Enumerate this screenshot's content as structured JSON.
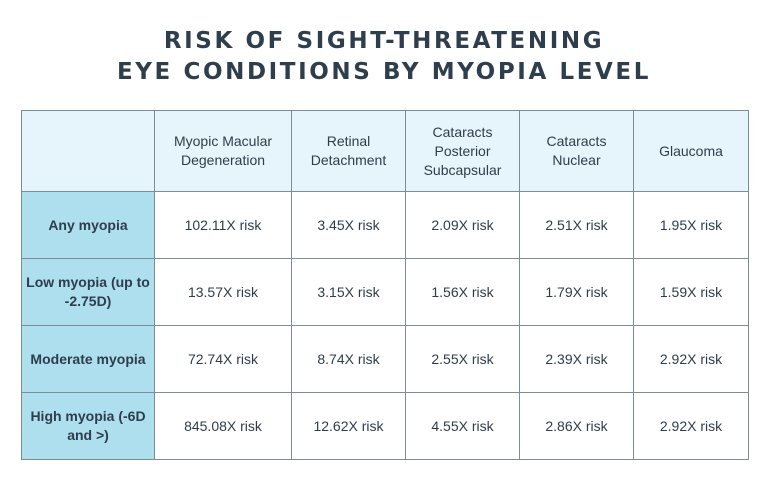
{
  "title": {
    "line1": "RISK OF SIGHT-THREATENING",
    "line2": "EYE CONDITIONS BY MYOPIA LEVEL"
  },
  "colors": {
    "title_text": "#2f3e4d",
    "header_bg": "#e6f5fb",
    "row_header_bg": "#aedfee",
    "border": "#7d8c96"
  },
  "chart_data": {
    "type": "table",
    "title": "RISK OF SIGHT-THREATENING EYE CONDITIONS BY MYOPIA LEVEL",
    "columns": [
      "",
      "Myopic Macular Degeneration",
      "Retinal Detachment",
      "Cataracts Posterior Subcapsular",
      "Cataracts Nuclear",
      "Glaucoma"
    ],
    "rows": [
      {
        "label": "Any myopia",
        "cells": [
          "102.11X risk",
          "3.45X risk",
          "2.09X risk",
          "2.51X risk",
          "1.95X risk"
        ]
      },
      {
        "label": "Low myopia (up to -2.75D)",
        "cells": [
          "13.57X risk",
          "3.15X risk",
          "1.56X risk",
          "1.79X risk",
          "1.59X risk"
        ]
      },
      {
        "label": "Moderate myopia",
        "cells": [
          "72.74X risk",
          "8.74X risk",
          "2.55X risk",
          "2.39X risk",
          "2.92X risk"
        ]
      },
      {
        "label": "High myopia (-6D and >)",
        "cells": [
          "845.08X risk",
          "12.62X risk",
          "4.55X risk",
          "2.86X risk",
          "2.92X risk"
        ]
      }
    ]
  }
}
